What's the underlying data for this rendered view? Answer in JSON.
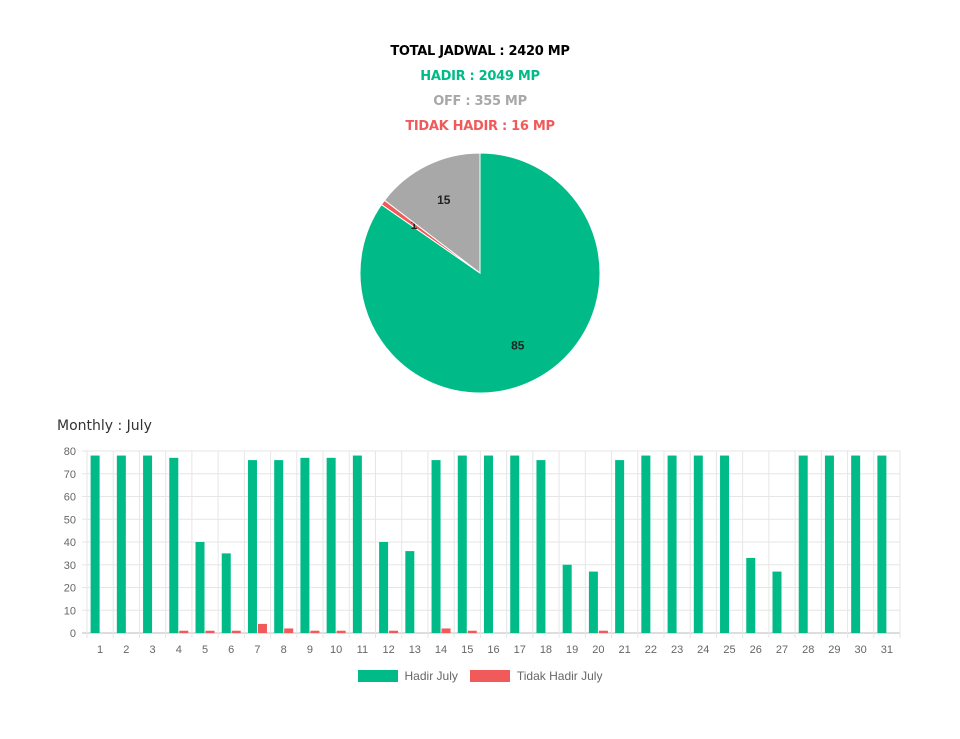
{
  "summary": {
    "total": {
      "text": "TOTAL JADWAL : 2420 MP",
      "color": "#000000"
    },
    "hadir": {
      "text": "HADIR : 2049 MP",
      "color": "#00bb88"
    },
    "off": {
      "text": "OFF : 355 MP",
      "color": "#a8a8a8"
    },
    "tidak_hadir": {
      "text": "TIDAK HADIR : 16 MP",
      "color": "#f05a5a"
    }
  },
  "monthly_title": "Monthly : July",
  "chart_data": [
    {
      "type": "pie",
      "slices": [
        {
          "label": "85",
          "value": 85,
          "color": "#00bb88"
        },
        {
          "label": "1",
          "value": 0.7,
          "color": "#f05a5a"
        },
        {
          "label": "15",
          "value": 14.7,
          "color": "#a8a8a8"
        }
      ]
    },
    {
      "type": "bar",
      "title": "Monthly : July",
      "categories": [
        "1",
        "2",
        "3",
        "4",
        "5",
        "6",
        "7",
        "8",
        "9",
        "10",
        "11",
        "12",
        "13",
        "14",
        "15",
        "16",
        "17",
        "18",
        "19",
        "20",
        "21",
        "22",
        "23",
        "24",
        "25",
        "26",
        "27",
        "28",
        "29",
        "30",
        "31"
      ],
      "series": [
        {
          "name": "Hadir July",
          "color": "#00bb88",
          "values": [
            78,
            78,
            78,
            77,
            40,
            35,
            76,
            76,
            77,
            77,
            78,
            40,
            36,
            76,
            78,
            78,
            78,
            76,
            30,
            27,
            76,
            78,
            78,
            78,
            78,
            33,
            27,
            78,
            78,
            78,
            78
          ]
        },
        {
          "name": "Tidak Hadir July",
          "color": "#f05a5a",
          "values": [
            0,
            0,
            0,
            1,
            1,
            1,
            4,
            2,
            1,
            1,
            0,
            1,
            0,
            2,
            1,
            0,
            0,
            0,
            0,
            1,
            0,
            0,
            0,
            0,
            0,
            0,
            0,
            0,
            0,
            0,
            0
          ]
        }
      ],
      "ylim": [
        0,
        80
      ],
      "yticks": [
        0,
        10,
        20,
        30,
        40,
        50,
        60,
        70,
        80
      ],
      "grid": true,
      "legend": "bottom"
    }
  ]
}
